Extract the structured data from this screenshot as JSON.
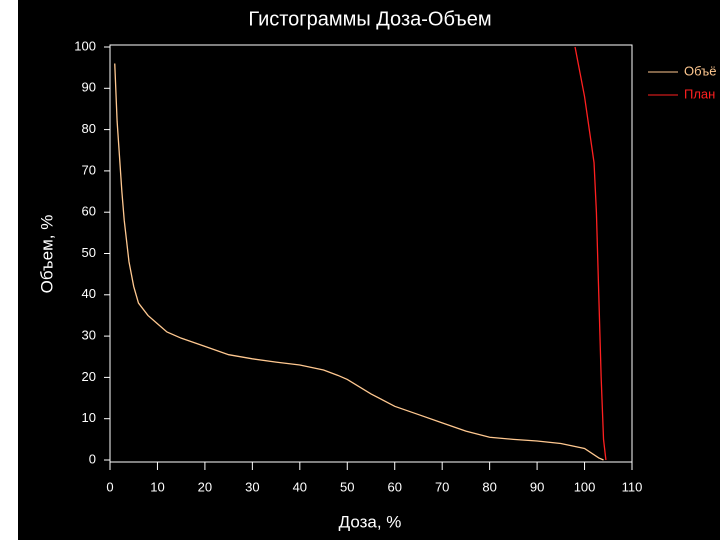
{
  "chart_data": {
    "type": "line",
    "title": "Гистограммы Доза-Объем",
    "x_label": "Доза, %",
    "y_label": "Объем, %",
    "xlim": [
      0,
      110
    ],
    "xticks": [
      0,
      10,
      20,
      30,
      40,
      50,
      60,
      70,
      80,
      90,
      100,
      110
    ],
    "ylim": [
      0,
      100
    ],
    "yticks": [
      0,
      10,
      20,
      30,
      40,
      50,
      60,
      70,
      80,
      90,
      100
    ],
    "legend": "right",
    "series": [
      {
        "name": "Объё",
        "color": "#ffc890",
        "x": [
          1,
          1.5,
          2.5,
          3,
          4,
          5,
          6,
          8,
          10,
          12,
          15,
          20,
          25,
          30,
          35,
          40,
          45,
          48,
          50,
          55,
          60,
          65,
          70,
          75,
          80,
          85,
          90,
          95,
          100,
          103,
          104
        ],
        "values": [
          96,
          82,
          65,
          58,
          48,
          42,
          38,
          35,
          33,
          31,
          29.5,
          27.5,
          25.5,
          24.5,
          23.7,
          23,
          21.8,
          20.5,
          19.5,
          16,
          13,
          11,
          9,
          7,
          5.5,
          5,
          4.6,
          4,
          2.8,
          0.5,
          0
        ]
      },
      {
        "name": "План",
        "color": "#ff2020",
        "x": [
          98,
          100,
          101,
          102,
          102.5,
          103,
          103.5,
          104,
          104.5
        ],
        "values": [
          100,
          88,
          80,
          72,
          60,
          40,
          20,
          5,
          0
        ]
      }
    ]
  }
}
